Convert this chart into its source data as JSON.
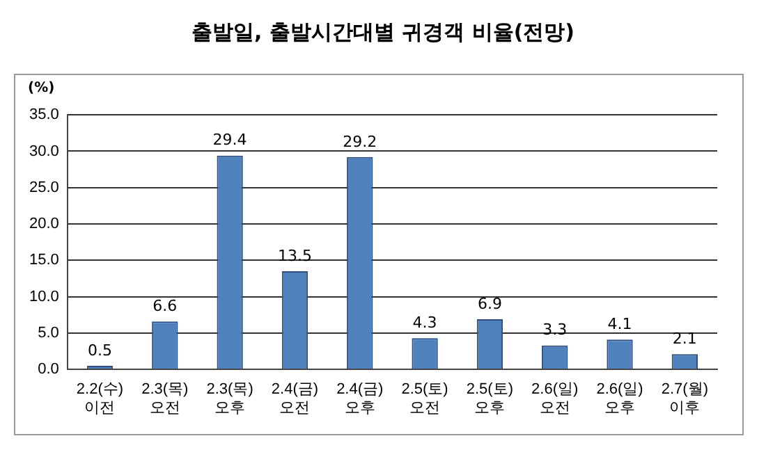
{
  "chart_data": {
    "type": "bar",
    "title": "출발일, 출발시간대별 귀경객 비율(전망)",
    "ylabel": "(%)",
    "categories": [
      "2.2(수)\n이전",
      "2.3(목)\n오전",
      "2.3(목)\n오후",
      "2.4(금)\n오전",
      "2.4(금)\n오후",
      "2.5(토)\n오전",
      "2.5(토)\n오후",
      "2.6(일)\n오전",
      "2.6(일)\n오후",
      "2.7(월)\n이후"
    ],
    "values": [
      0.5,
      6.6,
      29.4,
      13.5,
      29.2,
      4.3,
      6.9,
      3.3,
      4.1,
      2.1
    ],
    "color": "#4f81bd",
    "ylim": [
      0,
      35
    ],
    "yticks": [
      {
        "value": 0,
        "label": "0.0"
      },
      {
        "value": 5,
        "label": "5.0"
      },
      {
        "value": 10,
        "label": "10.0"
      },
      {
        "value": 15,
        "label": "15.0"
      },
      {
        "value": 20,
        "label": "20.0"
      },
      {
        "value": 25,
        "label": "25.0"
      },
      {
        "value": 30,
        "label": "30.0"
      },
      {
        "value": 35,
        "label": "35.0"
      }
    ],
    "grid": "y",
    "data_labels": true,
    "legend": false
  }
}
